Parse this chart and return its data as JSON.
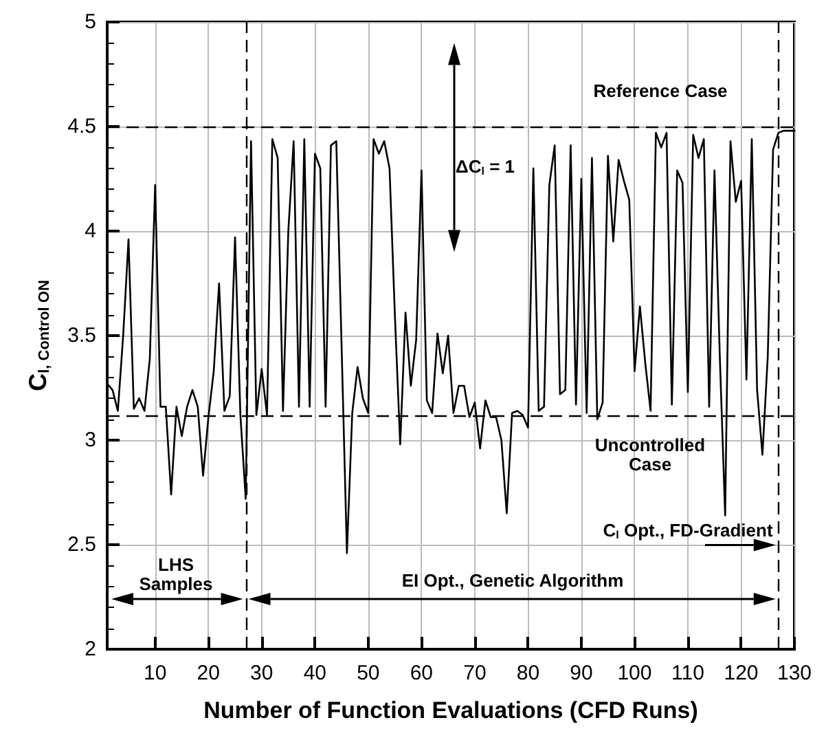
{
  "chart_data": {
    "type": "line",
    "xlabel": "Number of Function Evaluations (CFD Runs)",
    "ylabel": "C$_{l, Control ON}$",
    "x": [
      1,
      2,
      3,
      4,
      5,
      6,
      7,
      8,
      9,
      10,
      11,
      12,
      13,
      14,
      15,
      16,
      17,
      18,
      19,
      20,
      21,
      22,
      23,
      24,
      25,
      26,
      27,
      28,
      29,
      30,
      31,
      32,
      33,
      34,
      35,
      36,
      37,
      38,
      39,
      40,
      41,
      42,
      43,
      44,
      45,
      46,
      47,
      48,
      49,
      50,
      51,
      52,
      53,
      54,
      55,
      56,
      57,
      58,
      59,
      60,
      61,
      62,
      63,
      64,
      65,
      66,
      67,
      68,
      69,
      70,
      71,
      72,
      73,
      74,
      75,
      76,
      77,
      78,
      79,
      80,
      81,
      82,
      83,
      84,
      85,
      86,
      87,
      88,
      89,
      90,
      91,
      92,
      93,
      94,
      95,
      96,
      97,
      98,
      99,
      100,
      101,
      102,
      103,
      104,
      105,
      106,
      107,
      108,
      109,
      110,
      111,
      112,
      113,
      114,
      115,
      116,
      117,
      118,
      119,
      120,
      121,
      122,
      123,
      124,
      125,
      126,
      127,
      128,
      129,
      130
    ],
    "series": [
      {
        "color": "#000000",
        "values": [
          3.27,
          3.24,
          3.14,
          3.5,
          3.96,
          3.15,
          3.2,
          3.14,
          3.39,
          4.22,
          3.16,
          3.16,
          2.74,
          3.16,
          3.02,
          3.16,
          3.24,
          3.16,
          2.83,
          3.11,
          3.33,
          3.75,
          3.14,
          3.21,
          3.97,
          3.12,
          2.72,
          4.43,
          3.12,
          3.34,
          3.12,
          4.44,
          4.35,
          3.14,
          4.0,
          4.43,
          3.16,
          4.44,
          3.16,
          4.37,
          4.3,
          3.16,
          4.41,
          4.43,
          3.45,
          2.46,
          3.13,
          3.35,
          3.2,
          3.13,
          4.44,
          4.37,
          4.43,
          4.3,
          3.6,
          2.98,
          3.61,
          3.26,
          3.48,
          4.29,
          3.19,
          3.13,
          3.51,
          3.32,
          3.5,
          3.13,
          3.26,
          3.26,
          3.11,
          3.18,
          2.96,
          3.19,
          3.11,
          3.11,
          3.0,
          2.65,
          3.13,
          3.14,
          3.12,
          3.06,
          4.3,
          3.14,
          3.16,
          4.22,
          4.41,
          3.22,
          3.24,
          4.41,
          3.17,
          4.25,
          3.13,
          4.35,
          3.1,
          3.18,
          4.36,
          3.95,
          4.34,
          4.24,
          4.15,
          3.33,
          3.64,
          3.37,
          3.14,
          4.47,
          4.4,
          4.47,
          3.17,
          4.29,
          4.23,
          3.23,
          4.46,
          4.35,
          4.44,
          3.16,
          4.29,
          3.4,
          2.64,
          4.43,
          4.14,
          4.24,
          3.29,
          4.44,
          3.24,
          2.93,
          3.4,
          4.39,
          4.47,
          4.48,
          4.48,
          4.48
        ]
      }
    ],
    "xlim": [
      1,
      130
    ],
    "ylim": [
      2,
      5
    ],
    "xticks": [
      10,
      20,
      30,
      40,
      50,
      60,
      70,
      80,
      90,
      100,
      110,
      120,
      130
    ],
    "yticks": [
      2,
      2.5,
      3,
      3.5,
      4,
      4.5,
      5
    ],
    "grid": true,
    "marker": "none",
    "line_style": "solid",
    "ref_lines": [
      {
        "axis": "y",
        "value": 4.5,
        "line_style": "dashed"
      },
      {
        "axis": "y",
        "value": 3.12,
        "line_style": "dashed"
      },
      {
        "axis": "x",
        "value": 27,
        "line_style": "dashed"
      },
      {
        "axis": "x",
        "value": 127,
        "line_style": "dashed"
      }
    ],
    "annotations": [
      "Reference Case",
      "Uncontrolled Case",
      "ΔC$_{l}$ = 1",
      "LHS Samples",
      "EI Opt., Genetic Algorithm",
      "C$_{l}$ Opt., FD-Gradient"
    ]
  }
}
